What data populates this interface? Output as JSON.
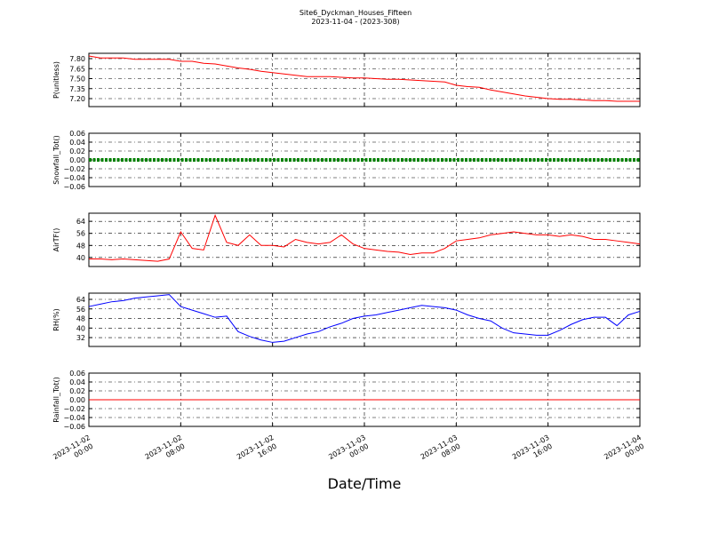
{
  "title": "Site6_Dyckman_Houses_Fifteen",
  "subtitle": "2023-11-04 - (2023-308)",
  "xlabel": "Date/Time",
  "x": [
    "2023-11-02 00:00",
    "2023-11-02 01:00",
    "2023-11-02 02:00",
    "2023-11-02 03:00",
    "2023-11-02 04:00",
    "2023-11-02 05:00",
    "2023-11-02 06:00",
    "2023-11-02 07:00",
    "2023-11-02 08:00",
    "2023-11-02 09:00",
    "2023-11-02 10:00",
    "2023-11-02 11:00",
    "2023-11-02 12:00",
    "2023-11-02 13:00",
    "2023-11-02 14:00",
    "2023-11-02 15:00",
    "2023-11-02 16:00",
    "2023-11-02 17:00",
    "2023-11-02 18:00",
    "2023-11-02 19:00",
    "2023-11-02 20:00",
    "2023-11-02 21:00",
    "2023-11-02 22:00",
    "2023-11-02 23:00",
    "2023-11-03 00:00",
    "2023-11-03 01:00",
    "2023-11-03 02:00",
    "2023-11-03 03:00",
    "2023-11-03 04:00",
    "2023-11-03 05:00",
    "2023-11-03 06:00",
    "2023-11-03 07:00",
    "2023-11-03 08:00",
    "2023-11-03 09:00",
    "2023-11-03 10:00",
    "2023-11-03 11:00",
    "2023-11-03 12:00",
    "2023-11-03 13:00",
    "2023-11-03 14:00",
    "2023-11-03 15:00",
    "2023-11-03 16:00",
    "2023-11-03 17:00",
    "2023-11-03 18:00",
    "2023-11-03 19:00",
    "2023-11-03 20:00",
    "2023-11-03 21:00",
    "2023-11-03 22:00",
    "2023-11-03 23:00",
    "2023-11-04 00:00"
  ],
  "xlim": [
    "2023-11-02 00:00",
    "2023-11-04 00:00"
  ],
  "xticks": [
    "2023-11-02 00:00",
    "2023-11-02 08:00",
    "2023-11-02 16:00",
    "2023-11-03 00:00",
    "2023-11-03 08:00",
    "2023-11-03 16:00",
    "2023-11-04 00:00"
  ],
  "chart_data": [
    {
      "type": "line",
      "ylabel": "P(unitless)",
      "color": "#ff0000",
      "grid": true,
      "values": [
        7.84,
        7.81,
        7.81,
        7.81,
        7.79,
        7.79,
        7.79,
        7.79,
        7.76,
        7.76,
        7.73,
        7.72,
        7.69,
        7.66,
        7.64,
        7.61,
        7.59,
        7.57,
        7.55,
        7.53,
        7.53,
        7.53,
        7.52,
        7.51,
        7.51,
        7.5,
        7.49,
        7.49,
        7.48,
        7.47,
        7.46,
        7.45,
        7.4,
        7.38,
        7.37,
        7.33,
        7.3,
        7.27,
        7.24,
        7.22,
        7.2,
        7.19,
        7.19,
        7.18,
        7.17,
        7.17,
        7.16,
        7.16,
        7.16
      ],
      "ylim": [
        7.08,
        7.88
      ],
      "yticks": [
        {
          "value": 7.2,
          "label": "7.20"
        },
        {
          "value": 7.35,
          "label": "7.35"
        },
        {
          "value": 7.5,
          "label": "7.50"
        },
        {
          "value": 7.65,
          "label": "7.65"
        },
        {
          "value": 7.8,
          "label": "7.80"
        }
      ]
    },
    {
      "type": "line",
      "ylabel": "Snowfall_Tot()",
      "color": "#008000",
      "marker": "o",
      "grid": true,
      "values": [
        0,
        0,
        0,
        0,
        0,
        0,
        0,
        0,
        0,
        0,
        0,
        0,
        0,
        0,
        0,
        0,
        0,
        0,
        0,
        0,
        0,
        0,
        0,
        0,
        0,
        0,
        0,
        0,
        0,
        0,
        0,
        0,
        0,
        0,
        0,
        0,
        0,
        0,
        0,
        0,
        0,
        0,
        0,
        0,
        0,
        0,
        0,
        0,
        0
      ],
      "ylim": [
        -0.06,
        0.06
      ],
      "yticks": [
        {
          "value": -0.06,
          "label": "−0.06"
        },
        {
          "value": -0.04,
          "label": "−0.04"
        },
        {
          "value": -0.02,
          "label": "−0.02"
        },
        {
          "value": 0,
          "label": "0.00"
        },
        {
          "value": 0.02,
          "label": "0.02"
        },
        {
          "value": 0.04,
          "label": "0.04"
        },
        {
          "value": 0.06,
          "label": "0.06"
        }
      ]
    },
    {
      "type": "line",
      "ylabel": "AirTF()",
      "color": "#ff0000",
      "grid": true,
      "values": [
        39,
        39,
        38.5,
        39,
        38.5,
        38,
        37.5,
        39,
        57,
        46,
        45,
        68,
        50,
        48,
        55,
        48,
        48,
        47,
        52,
        50,
        49,
        50,
        55,
        49,
        46,
        45,
        44,
        43.5,
        42,
        43,
        43,
        46,
        51,
        52,
        53,
        55,
        56,
        57,
        56,
        55,
        55,
        54,
        55,
        54,
        52,
        52,
        51,
        50,
        49
      ],
      "ylim": [
        34,
        69.4
      ],
      "yticks": [
        40,
        48,
        56,
        64
      ]
    },
    {
      "type": "line",
      "ylabel": "RH(%)",
      "color": "#0000ff",
      "grid": true,
      "values": [
        58,
        60,
        62,
        63,
        65,
        66,
        67,
        68,
        58,
        55,
        52,
        49,
        50,
        37,
        33,
        30,
        28,
        29,
        32,
        35,
        37,
        41,
        44,
        48,
        50,
        51,
        53,
        55,
        57,
        59,
        58,
        57,
        55,
        51,
        48,
        46,
        40,
        36,
        35,
        34,
        34,
        38,
        43,
        47,
        49,
        49,
        42,
        51,
        54
      ],
      "ylim": [
        24.6,
        69.2
      ],
      "yticks": [
        32,
        40,
        48,
        56,
        64
      ]
    },
    {
      "type": "line",
      "ylabel": "Rainfall_Tot()",
      "color": "#ff0000",
      "grid": true,
      "values": [
        0,
        0,
        0,
        0,
        0,
        0,
        0,
        0,
        0,
        0,
        0,
        0,
        0,
        0,
        0,
        0,
        0,
        0,
        0,
        0,
        0,
        0,
        0,
        0,
        0,
        0,
        0,
        0,
        0,
        0,
        0,
        0,
        0,
        0,
        0,
        0,
        0,
        0,
        0,
        0,
        0,
        0,
        0,
        0,
        0,
        0,
        0,
        0,
        0
      ],
      "ylim": [
        -0.06,
        0.06
      ],
      "yticks": [
        {
          "value": -0.06,
          "label": "−0.06"
        },
        {
          "value": -0.04,
          "label": "−0.04"
        },
        {
          "value": -0.02,
          "label": "−0.02"
        },
        {
          "value": 0,
          "label": "0.00"
        },
        {
          "value": 0.02,
          "label": "0.02"
        },
        {
          "value": 0.04,
          "label": "0.04"
        },
        {
          "value": 0.06,
          "label": "0.06"
        }
      ]
    }
  ]
}
